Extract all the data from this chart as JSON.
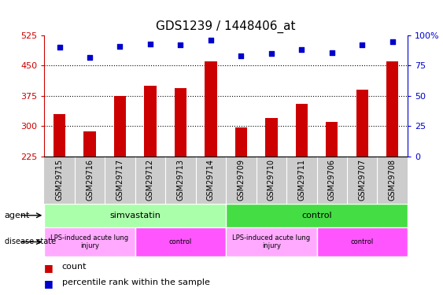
{
  "title": "GDS1239 / 1448406_at",
  "samples": [
    "GSM29715",
    "GSM29716",
    "GSM29717",
    "GSM29712",
    "GSM29713",
    "GSM29714",
    "GSM29709",
    "GSM29710",
    "GSM29711",
    "GSM29706",
    "GSM29707",
    "GSM29708"
  ],
  "counts": [
    330,
    287,
    375,
    400,
    395,
    460,
    297,
    320,
    355,
    310,
    390,
    460
  ],
  "percentiles": [
    90,
    82,
    91,
    93,
    92,
    96,
    83,
    85,
    88,
    86,
    92,
    95
  ],
  "ylim_left": [
    225,
    525
  ],
  "ylim_right": [
    0,
    100
  ],
  "yticks_left": [
    225,
    300,
    375,
    450,
    525
  ],
  "yticks_right": [
    0,
    25,
    50,
    75,
    100
  ],
  "bar_color": "#cc0000",
  "dot_color": "#0000cc",
  "bar_bottom": 225,
  "agent_groups": [
    {
      "label": "simvastatin",
      "start": 0,
      "end": 6,
      "color": "#aaffaa"
    },
    {
      "label": "control",
      "start": 6,
      "end": 12,
      "color": "#44dd44"
    }
  ],
  "disease_groups": [
    {
      "label": "LPS-induced acute lung\ninjury",
      "start": 0,
      "end": 3,
      "color": "#ffaaff"
    },
    {
      "label": "control",
      "start": 3,
      "end": 6,
      "color": "#ff55ff"
    },
    {
      "label": "LPS-induced acute lung\ninjury",
      "start": 6,
      "end": 9,
      "color": "#ffaaff"
    },
    {
      "label": "control",
      "start": 9,
      "end": 12,
      "color": "#ff55ff"
    }
  ],
  "tick_color_left": "#cc0000",
  "tick_color_right": "#0000cc",
  "legend_count_color": "#cc0000",
  "legend_pct_color": "#0000cc"
}
